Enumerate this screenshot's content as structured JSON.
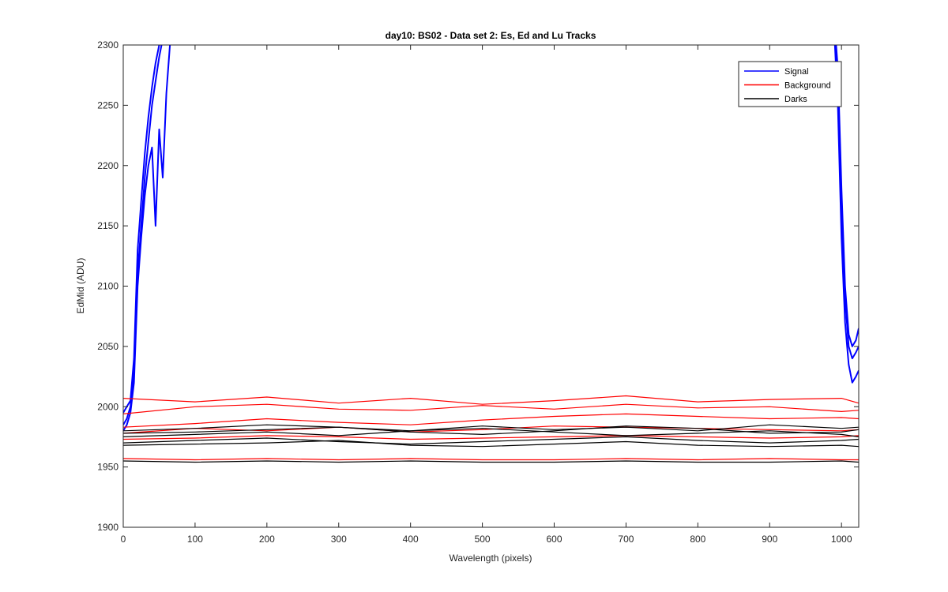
{
  "chart_data": {
    "type": "line",
    "title": "day10: BS02 - Data set 2: Es, Ed and Lu Tracks",
    "xlabel": "Wavelength (pixels)",
    "ylabel": "EdMid (ADU)",
    "xlim": [
      0,
      1024
    ],
    "ylim": [
      1900,
      2300
    ],
    "xticks": [
      0,
      100,
      200,
      300,
      400,
      500,
      600,
      700,
      800,
      900,
      1000
    ],
    "yticks": [
      1900,
      1950,
      2000,
      2050,
      2100,
      2150,
      2200,
      2250,
      2300
    ],
    "grid": false,
    "legend_position": "top-right",
    "legend": [
      {
        "name": "Signal",
        "color": "#0000ff"
      },
      {
        "name": "Background",
        "color": "#ff0000"
      },
      {
        "name": "Darks",
        "color": "#000000"
      }
    ],
    "series": [
      {
        "group": "Signal",
        "color": "#0000ff",
        "x": [
          0,
          5,
          10,
          15,
          20,
          25,
          30,
          35,
          40,
          45,
          50,
          55,
          60,
          65
        ],
        "y": [
          1985,
          1990,
          2000,
          2030,
          2110,
          2150,
          2190,
          2220,
          2250,
          2270,
          2290,
          2305,
          2320,
          2335
        ]
      },
      {
        "group": "Signal",
        "color": "#0000ff",
        "x": [
          0,
          5,
          10,
          15,
          20,
          25,
          30,
          35,
          40,
          45,
          50,
          55,
          60,
          65
        ],
        "y": [
          1995,
          2000,
          2005,
          2040,
          2130,
          2170,
          2210,
          2240,
          2265,
          2285,
          2300,
          2310,
          2325,
          2340
        ]
      },
      {
        "group": "Signal",
        "color": "#0000ff",
        "x": [
          0,
          5,
          10,
          15,
          20,
          25,
          30,
          35,
          40,
          45,
          50,
          55,
          60,
          65
        ],
        "y": [
          1980,
          1985,
          1995,
          2020,
          2100,
          2140,
          2175,
          2200,
          2215,
          2150,
          2230,
          2190,
          2260,
          2300
        ]
      },
      {
        "group": "Signal",
        "color": "#0000ff",
        "x": [
          990,
          995,
          1000,
          1005,
          1010,
          1015,
          1020,
          1024
        ],
        "y": [
          2320,
          2280,
          2180,
          2100,
          2060,
          2050,
          2055,
          2065
        ]
      },
      {
        "group": "Signal",
        "color": "#0000ff",
        "x": [
          990,
          995,
          1000,
          1005,
          1010,
          1015,
          1020,
          1024
        ],
        "y": [
          2330,
          2260,
          2160,
          2090,
          2050,
          2040,
          2045,
          2050
        ]
      },
      {
        "group": "Signal",
        "color": "#0000ff",
        "x": [
          990,
          995,
          1000,
          1005,
          1010,
          1015,
          1020,
          1024
        ],
        "y": [
          2310,
          2250,
          2140,
          2070,
          2035,
          2020,
          2025,
          2030
        ]
      },
      {
        "group": "Background",
        "color": "#ff0000",
        "x": [
          0,
          100,
          200,
          300,
          400,
          500,
          600,
          700,
          800,
          900,
          1000,
          1024
        ],
        "y": [
          2007,
          2004,
          2008,
          2003,
          2007,
          2002,
          2005,
          2009,
          2004,
          2006,
          2007,
          2003
        ]
      },
      {
        "group": "Background",
        "color": "#ff0000",
        "x": [
          0,
          100,
          200,
          300,
          400,
          500,
          600,
          700,
          800,
          900,
          1000,
          1024
        ],
        "y": [
          1994,
          2000,
          2002,
          1998,
          1997,
          2001,
          1998,
          2002,
          1999,
          2000,
          1996,
          1997
        ]
      },
      {
        "group": "Background",
        "color": "#ff0000",
        "x": [
          0,
          100,
          200,
          300,
          400,
          500,
          600,
          700,
          800,
          900,
          1000,
          1024
        ],
        "y": [
          1983,
          1986,
          1990,
          1987,
          1985,
          1989,
          1992,
          1994,
          1992,
          1990,
          1991,
          1990
        ]
      },
      {
        "group": "Background",
        "color": "#ff0000",
        "x": [
          0,
          100,
          200,
          300,
          400,
          500,
          600,
          700,
          800,
          900,
          1000,
          1024
        ],
        "y": [
          1978,
          1982,
          1980,
          1983,
          1979,
          1981,
          1984,
          1983,
          1982,
          1981,
          1980,
          1981
        ]
      },
      {
        "group": "Background",
        "color": "#ff0000",
        "x": [
          0,
          100,
          200,
          300,
          400,
          500,
          600,
          700,
          800,
          900,
          1000,
          1024
        ],
        "y": [
          1973,
          1974,
          1976,
          1975,
          1973,
          1974,
          1975,
          1976,
          1975,
          1974,
          1975,
          1976
        ]
      },
      {
        "group": "Background",
        "color": "#ff0000",
        "x": [
          0,
          100,
          200,
          300,
          400,
          500,
          600,
          700,
          800,
          900,
          1000,
          1024
        ],
        "y": [
          1957,
          1956,
          1957,
          1956,
          1957,
          1956,
          1956,
          1957,
          1956,
          1957,
          1956,
          1956
        ]
      },
      {
        "group": "Darks",
        "color": "#000000",
        "x": [
          0,
          100,
          200,
          300,
          400,
          500,
          600,
          700,
          800,
          900,
          1000,
          1024
        ],
        "y": [
          1980,
          1982,
          1985,
          1983,
          1980,
          1984,
          1981,
          1983,
          1980,
          1985,
          1982,
          1983
        ]
      },
      {
        "group": "Darks",
        "color": "#000000",
        "x": [
          0,
          100,
          200,
          300,
          400,
          500,
          600,
          700,
          800,
          900,
          1000,
          1024
        ],
        "y": [
          1978,
          1979,
          1981,
          1983,
          1979,
          1977,
          1980,
          1984,
          1982,
          1978,
          1979,
          1981
        ]
      },
      {
        "group": "Darks",
        "color": "#000000",
        "x": [
          0,
          100,
          200,
          300,
          400,
          500,
          600,
          700,
          800,
          900,
          1000,
          1024
        ],
        "y": [
          1975,
          1977,
          1979,
          1976,
          1980,
          1982,
          1979,
          1976,
          1978,
          1980,
          1977,
          1975
        ]
      },
      {
        "group": "Darks",
        "color": "#000000",
        "x": [
          0,
          100,
          200,
          300,
          400,
          500,
          600,
          700,
          800,
          900,
          1000,
          1024
        ],
        "y": [
          1970,
          1972,
          1974,
          1971,
          1969,
          1971,
          1973,
          1975,
          1972,
          1970,
          1972,
          1973
        ]
      },
      {
        "group": "Darks",
        "color": "#000000",
        "x": [
          0,
          100,
          200,
          300,
          400,
          500,
          600,
          700,
          800,
          900,
          1000,
          1024
        ],
        "y": [
          1968,
          1969,
          1970,
          1972,
          1968,
          1967,
          1969,
          1971,
          1968,
          1967,
          1968,
          1967
        ]
      },
      {
        "group": "Darks",
        "color": "#000000",
        "x": [
          0,
          100,
          200,
          300,
          400,
          500,
          600,
          700,
          800,
          900,
          1000,
          1024
        ],
        "y": [
          1955,
          1954,
          1955,
          1954,
          1955,
          1954,
          1954,
          1955,
          1954,
          1954,
          1955,
          1954
        ]
      }
    ]
  }
}
